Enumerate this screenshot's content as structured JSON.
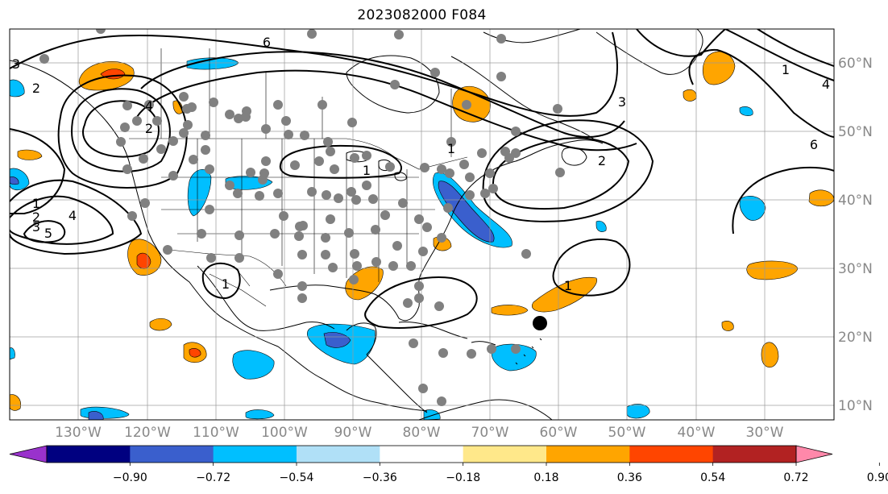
{
  "title": "2023082000 F084",
  "map": {
    "latitude_labels": [
      "60°N",
      "50°N",
      "40°N",
      "30°N",
      "20°N",
      "10°N"
    ],
    "longitude_labels": [
      "130°W",
      "120°W",
      "110°W",
      "100°W",
      "90°W",
      "80°W",
      "70°W",
      "60°W",
      "50°W",
      "40°W",
      "30°W"
    ],
    "gridlines": true,
    "contour_labels": [
      "6",
      "4",
      "2",
      "1",
      "1",
      "3",
      "2",
      "1",
      "3",
      "4",
      "5",
      "1",
      "2",
      "3",
      "4",
      "6",
      "2",
      "1",
      "1"
    ],
    "station_marker_color": "#808080",
    "highlight_marker_color": "#000000"
  },
  "colorbar": {
    "tick_labels": [
      "−0.90",
      "−0.72",
      "−0.54",
      "−0.36",
      "−0.18",
      "0.18",
      "0.36",
      "0.54",
      "0.72",
      "0.90"
    ],
    "colors": [
      "#9932cc",
      "#000080",
      "#3a5fcd",
      "#00bfff",
      "#b0e0f7",
      "#ffffff",
      "#ffe88a",
      "#ffa500",
      "#ff4500",
      "#b22222",
      "#ff88aa"
    ],
    "extend": "both"
  }
}
